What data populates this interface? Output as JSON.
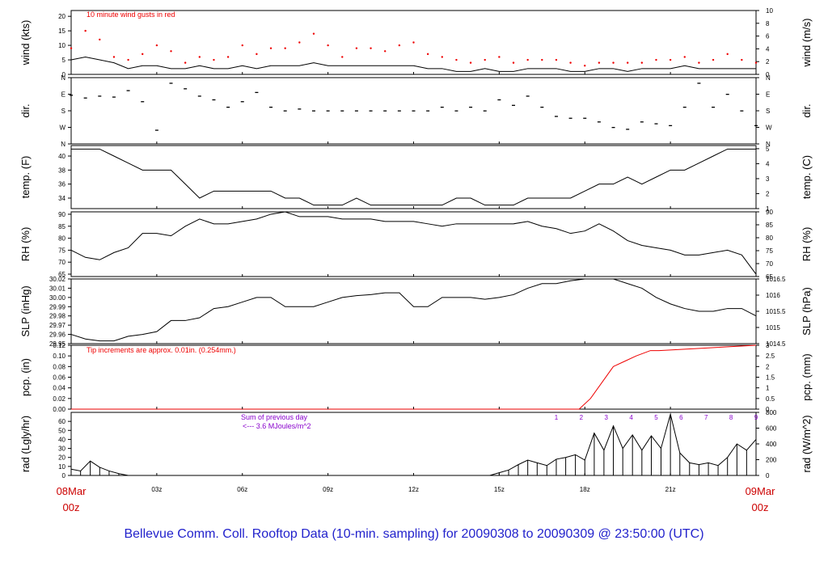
{
  "annotations": {
    "gust_note": "10  minute wind gusts in red",
    "tip_note": "Tip increments are approx. 0.01in. (0.254mm.)",
    "sum_note_line1": "Sum of previous day",
    "sum_note_line2": "<--- 3.6 MJoules/m^2"
  },
  "caption": "Bellevue Comm. Coll. Rooftop Data (10-min. sampling) for 20090308  to  20090309 @ 23:50:00  (UTC)",
  "colors": {
    "caption": "#2222cc",
    "date_labels": "#cc0000",
    "gust": "#ee0000",
    "precip": "#ee0000",
    "hour_markers": "#8800cc",
    "line": "#000000"
  },
  "chart_data": [
    {
      "type": "line",
      "panel": "wind",
      "ylabel": "wind (kts)",
      "ylabel_right": "wind (m/s)",
      "ylim": [
        0,
        22
      ],
      "yticks": [
        0,
        5,
        10,
        15,
        20
      ],
      "yticks_right": [
        0,
        2,
        4,
        6,
        8,
        10
      ],
      "x_hours": [
        0,
        0.5,
        1,
        1.5,
        2,
        2.5,
        3,
        3.5,
        4,
        4.5,
        5,
        5.5,
        6,
        6.5,
        7,
        7.5,
        8,
        8.5,
        9,
        9.5,
        10,
        10.5,
        11,
        11.5,
        12,
        12.5,
        13,
        13.5,
        14,
        14.5,
        15,
        15.5,
        16,
        16.5,
        17,
        17.5,
        18,
        18.5,
        19,
        19.5,
        20,
        20.5,
        21,
        21.5,
        22,
        22.5,
        23,
        23.5,
        24
      ],
      "series": [
        {
          "values": [
            5,
            6,
            5,
            4,
            2,
            3,
            3,
            2,
            2,
            3,
            2,
            2,
            3,
            2,
            3,
            3,
            3,
            4,
            3,
            3,
            3,
            3,
            3,
            3,
            3,
            2,
            2,
            1,
            1,
            2,
            1,
            1,
            2,
            2,
            2,
            1,
            1,
            2,
            2,
            1,
            2,
            2,
            2,
            3,
            2,
            2,
            2,
            2,
            2
          ]
        },
        {
          "name": "gust",
          "values": [
            9,
            15,
            12,
            6,
            5,
            7,
            10,
            8,
            4,
            6,
            5,
            6,
            10,
            7,
            9,
            9,
            11,
            14,
            10,
            6,
            9,
            9,
            8,
            10,
            11,
            7,
            6,
            5,
            4,
            5,
            6,
            4,
            5,
            5,
            5,
            4,
            3,
            4,
            4,
            4,
            4,
            5,
            5,
            6,
            4,
            5,
            7,
            5,
            4
          ]
        }
      ]
    },
    {
      "type": "scatter",
      "panel": "direction",
      "ylabel": "dir.",
      "ylabel_right": "dir.",
      "ylim": [
        0,
        360
      ],
      "yticks": [
        "N",
        "W",
        "S",
        "E",
        "N"
      ],
      "x_hours": [
        0,
        0.5,
        1,
        1.5,
        2,
        2.5,
        3,
        3.5,
        4,
        4.5,
        5,
        5.5,
        6,
        6.5,
        7,
        7.5,
        8,
        8.5,
        9,
        9.5,
        10,
        10.5,
        11,
        11.5,
        12,
        12.5,
        13,
        13.5,
        14,
        14.5,
        15,
        15.5,
        16,
        16.5,
        17,
        17.5,
        18,
        18.5,
        19,
        19.5,
        20,
        20.5,
        21,
        21.5,
        22,
        22.5,
        23,
        23.5,
        24
      ],
      "values": [
        265,
        250,
        260,
        255,
        290,
        230,
        75,
        330,
        300,
        260,
        240,
        200,
        230,
        280,
        200,
        180,
        190,
        180,
        180,
        180,
        180,
        180,
        180,
        180,
        180,
        180,
        200,
        180,
        200,
        180,
        240,
        210,
        260,
        200,
        150,
        140,
        140,
        120,
        90,
        80,
        120,
        110,
        100,
        200,
        330,
        200,
        270,
        180,
        100
      ]
    },
    {
      "type": "line",
      "panel": "temperature",
      "ylabel": "temp. (F)",
      "ylabel_right": "temp. (C)",
      "ylim": [
        32.5,
        41.5
      ],
      "yticks": [
        34,
        36,
        38,
        40
      ],
      "yticks_right": [
        1,
        2,
        3,
        4,
        5
      ],
      "x_hours": [
        0,
        0.5,
        1,
        1.5,
        2,
        2.5,
        3,
        3.5,
        4,
        4.5,
        5,
        5.5,
        6,
        6.5,
        7,
        7.5,
        8,
        8.5,
        9,
        9.5,
        10,
        10.5,
        11,
        11.5,
        12,
        12.5,
        13,
        13.5,
        14,
        14.5,
        15,
        15.5,
        16,
        16.5,
        17,
        17.5,
        18,
        18.5,
        19,
        19.5,
        20,
        20.5,
        21,
        21.5,
        22,
        22.5,
        23,
        23.5,
        24
      ],
      "values": [
        41,
        41,
        41,
        40,
        39,
        38,
        38,
        38,
        36,
        34,
        35,
        35,
        35,
        35,
        35,
        34,
        34,
        33,
        33,
        33,
        34,
        33,
        33,
        33,
        33,
        33,
        33,
        34,
        34,
        33,
        33,
        33,
        34,
        34,
        34,
        34,
        35,
        36,
        36,
        37,
        36,
        37,
        38,
        38,
        39,
        40,
        41,
        41,
        41
      ]
    },
    {
      "type": "line",
      "panel": "relative_humidity",
      "ylabel": "RH (%)",
      "ylabel_right": "RH (%)",
      "ylim": [
        64,
        91
      ],
      "yticks": [
        65,
        70,
        75,
        80,
        85,
        90
      ],
      "yticks_right": [
        65,
        70,
        75,
        80,
        85,
        90
      ],
      "x_hours": [
        0,
        0.5,
        1,
        1.5,
        2,
        2.5,
        3,
        3.5,
        4,
        4.5,
        5,
        5.5,
        6,
        6.5,
        7,
        7.5,
        8,
        8.5,
        9,
        9.5,
        10,
        10.5,
        11,
        11.5,
        12,
        12.5,
        13,
        13.5,
        14,
        14.5,
        15,
        15.5,
        16,
        16.5,
        17,
        17.5,
        18,
        18.5,
        19,
        19.5,
        20,
        20.5,
        21,
        21.5,
        22,
        22.5,
        23,
        23.5,
        24
      ],
      "values": [
        75,
        72,
        71,
        74,
        76,
        82,
        82,
        81,
        85,
        88,
        86,
        86,
        87,
        88,
        90,
        91,
        89,
        89,
        89,
        88,
        88,
        88,
        87,
        87,
        87,
        86,
        85,
        86,
        86,
        86,
        86,
        86,
        87,
        85,
        84,
        82,
        83,
        86,
        83,
        79,
        77,
        76,
        75,
        73,
        73,
        74,
        75,
        73,
        65
      ]
    },
    {
      "type": "line",
      "panel": "sea_level_pressure",
      "ylabel": "SLP (inHg)",
      "ylabel_right": "SLP (hPa)",
      "ylim": [
        29.95,
        30.02
      ],
      "yticks": [
        29.95,
        29.96,
        29.97,
        29.98,
        29.99,
        30.0,
        30.01,
        30.02
      ],
      "yticks_right": [
        1014.5,
        1015,
        1015.5,
        1016,
        1016.5
      ],
      "x_hours": [
        0,
        0.5,
        1,
        1.5,
        2,
        2.5,
        3,
        3.5,
        4,
        4.5,
        5,
        5.5,
        6,
        6.5,
        7,
        7.5,
        8,
        8.5,
        9,
        9.5,
        10,
        10.5,
        11,
        11.5,
        12,
        12.5,
        13,
        13.5,
        14,
        14.5,
        15,
        15.5,
        16,
        16.5,
        17,
        17.5,
        18,
        18.5,
        19,
        19.5,
        20,
        20.5,
        21,
        21.5,
        22,
        22.5,
        23,
        23.5,
        24
      ],
      "values": [
        29.96,
        29.955,
        29.953,
        29.953,
        29.958,
        29.96,
        29.963,
        29.975,
        29.975,
        29.978,
        29.988,
        29.99,
        29.995,
        30.0,
        30.0,
        29.99,
        29.99,
        29.99,
        29.995,
        30.0,
        30.002,
        30.003,
        30.005,
        30.005,
        29.99,
        29.99,
        30.0,
        30.0,
        30.0,
        29.998,
        30.0,
        30.003,
        30.01,
        30.015,
        30.015,
        30.018,
        30.02,
        30.02,
        30.02,
        30.015,
        30.01,
        30.0,
        29.993,
        29.988,
        29.985,
        29.985,
        29.988,
        29.988,
        29.98
      ]
    },
    {
      "type": "line",
      "panel": "precipitation",
      "ylabel": "pcp. (in)",
      "ylabel_right": "pcp. (mm)",
      "ylim": [
        0,
        0.12
      ],
      "yticks": [
        0,
        0.02,
        0.04,
        0.06,
        0.08,
        0.1,
        0.12
      ],
      "yticks_right": [
        0,
        0.5,
        1,
        1.5,
        2,
        2.5,
        3
      ],
      "x_hours": [
        0,
        17.8,
        18.2,
        18.6,
        19.0,
        19.4,
        19.8,
        20.3,
        20.6,
        24
      ],
      "values": [
        0,
        0,
        0.02,
        0.05,
        0.08,
        0.09,
        0.1,
        0.11,
        0.11,
        0.12
      ]
    },
    {
      "type": "bar",
      "panel": "solar_radiation",
      "ylabel": "rad (Lgly/hr)",
      "ylabel_right": "rad (W/m^2)",
      "ylim": [
        0,
        70
      ],
      "yticks": [
        0,
        10,
        20,
        30,
        40,
        50,
        60
      ],
      "yticks_right": [
        0,
        200,
        400,
        600,
        800
      ],
      "x_hours": [
        0,
        0.33,
        0.67,
        1,
        1.33,
        1.67,
        2,
        14.67,
        15,
        15.33,
        15.67,
        16,
        16.33,
        16.67,
        17,
        17.33,
        17.67,
        18,
        18.33,
        18.67,
        19,
        19.33,
        19.67,
        20,
        20.33,
        20.67,
        21,
        21.33,
        21.67,
        22,
        22.33,
        22.67,
        23,
        23.33,
        23.67,
        24
      ],
      "values": [
        7,
        5,
        16,
        9,
        5,
        2,
        0,
        0,
        3,
        6,
        12,
        17,
        14,
        11,
        18,
        20,
        23,
        17,
        47,
        28,
        55,
        30,
        45,
        28,
        44,
        30,
        68,
        25,
        14,
        12,
        14,
        11,
        20,
        35,
        28,
        40
      ],
      "markers": [
        "1",
        "2",
        "3",
        "4",
        "5",
        "6",
        "7",
        "8",
        "9"
      ]
    }
  ],
  "x_axis": {
    "ticks": [
      "03z",
      "06z",
      "09z",
      "12z",
      "15z",
      "18z",
      "21z"
    ],
    "start_date": "08Mar",
    "start_time": "00z",
    "end_date": "09Mar",
    "end_time": "00z"
  }
}
